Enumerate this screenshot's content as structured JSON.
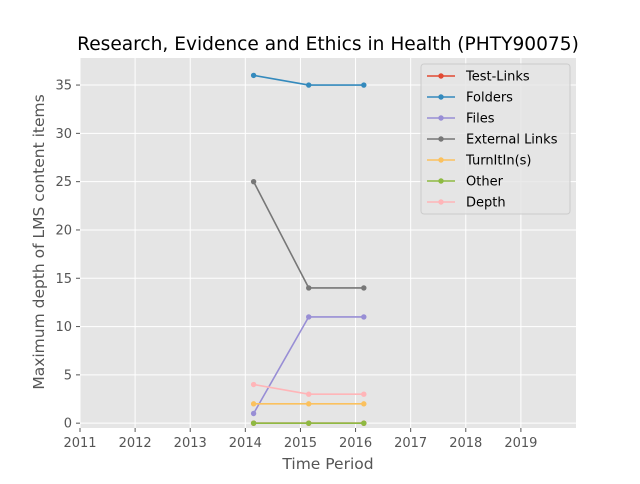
{
  "chart_data": {
    "type": "line",
    "title": "Research, Evidence and Ethics in Health (PHTY90075)",
    "xlabel": "Time Period",
    "ylabel": "Maximum depth of LMS content items",
    "xlim": [
      2011,
      2020
    ],
    "ylim": [
      -0.5,
      37.8
    ],
    "x_ticks": [
      2011,
      2012,
      2013,
      2014,
      2015,
      2016,
      2017,
      2018,
      2019
    ],
    "x_tick_labels": [
      "2011",
      "2012",
      "2013",
      "2014",
      "2015",
      "2016",
      "2017",
      "2018",
      "2019"
    ],
    "y_ticks": [
      0,
      5,
      10,
      15,
      20,
      25,
      30,
      35
    ],
    "y_tick_labels": [
      "0",
      "5",
      "10",
      "15",
      "20",
      "25",
      "30",
      "35"
    ],
    "grid": true,
    "legend_position": "top-right",
    "x": [
      2014.15,
      2015.15,
      2016.15
    ],
    "series": [
      {
        "name": "Test-Links",
        "color": "#e24a33",
        "values": [
          0,
          0,
          0
        ]
      },
      {
        "name": "Folders",
        "color": "#348abd",
        "values": [
          36,
          35,
          35
        ]
      },
      {
        "name": "Files",
        "color": "#988ed5",
        "values": [
          1,
          11,
          11
        ]
      },
      {
        "name": "External Links",
        "color": "#777777",
        "values": [
          25,
          14,
          14
        ]
      },
      {
        "name": "TurnItIn(s)",
        "color": "#fbc15e",
        "values": [
          2,
          2,
          2
        ]
      },
      {
        "name": "Other",
        "color": "#8eba42",
        "values": [
          0,
          0,
          0
        ]
      },
      {
        "name": "Depth",
        "color": "#ffb5b8",
        "values": [
          4,
          3,
          3
        ]
      }
    ]
  }
}
